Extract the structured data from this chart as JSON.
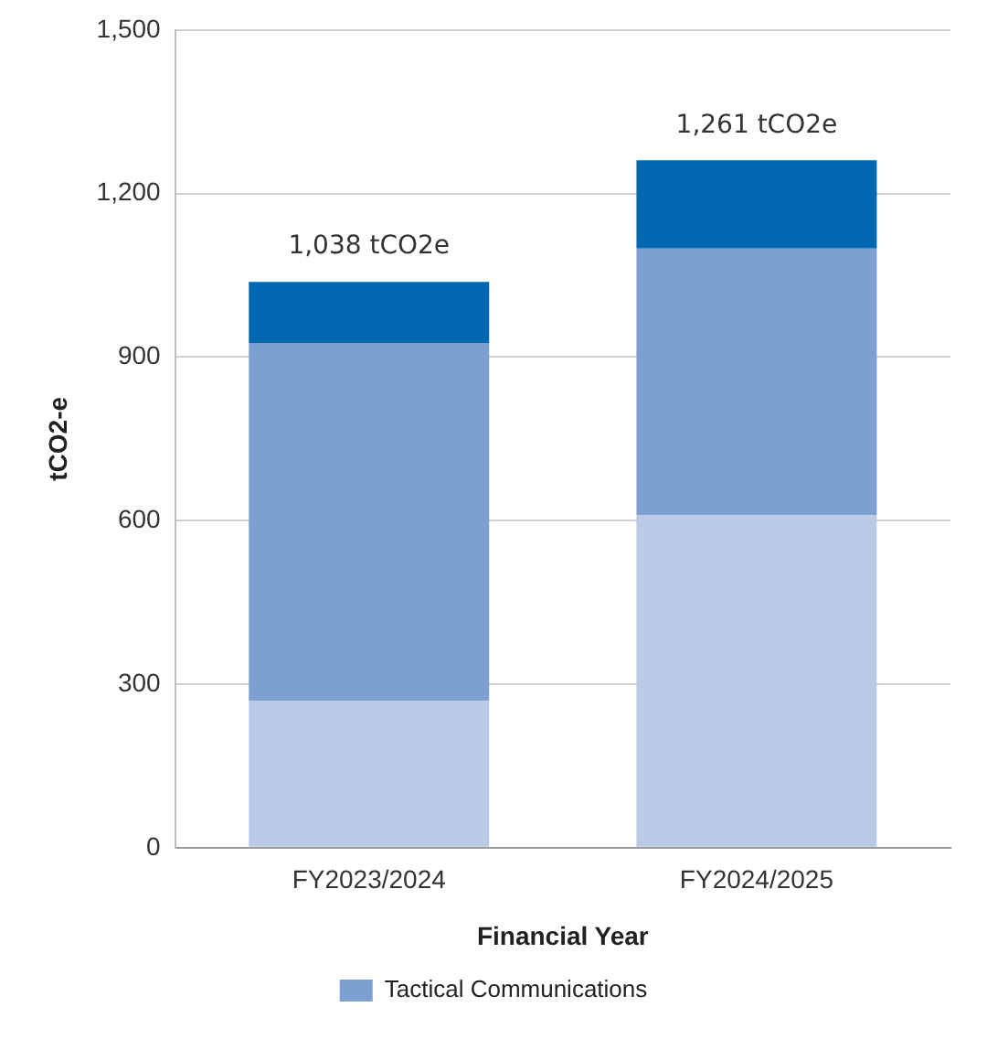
{
  "chart_data": {
    "type": "bar",
    "stacked": true,
    "xlabel": "Financial Year",
    "ylabel": "tCO2-e",
    "categories": [
      "FY2023/2024",
      "FY2024/2025"
    ],
    "series": [
      {
        "color": "#bac9e6",
        "values": [
          270,
          610
        ]
      },
      {
        "name": "Tactical Communications",
        "color": "#7ca0d2",
        "values": [
          656,
          489
        ]
      },
      {
        "color": "#0068b1",
        "values": [
          112,
          162
        ]
      }
    ],
    "ylim": [
      0,
      1500
    ],
    "yticks": [
      0,
      {
        "value": 300,
        "label": "300"
      },
      {
        "value": 600,
        "label": "600"
      },
      {
        "value": 900,
        "label": "900"
      },
      {
        "value": 1200,
        "label": "1,200"
      },
      {
        "value": 1500,
        "label": "1,500"
      }
    ],
    "totals": [
      "1,038 tCO2e",
      "1,261 tCO2e"
    ],
    "grid": "y",
    "legend": "bottom"
  }
}
